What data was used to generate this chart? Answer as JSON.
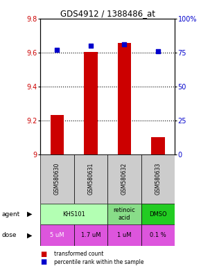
{
  "title": "GDS4912 / 1388486_at",
  "samples": [
    "GSM580630",
    "GSM580631",
    "GSM580632",
    "GSM580633"
  ],
  "transformed_counts": [
    9.23,
    9.605,
    9.655,
    9.1
  ],
  "percentile_ranks": [
    77,
    80,
    81,
    76
  ],
  "ylim_left": [
    9.0,
    9.8
  ],
  "ylim_right": [
    0,
    100
  ],
  "yticks_left": [
    9.0,
    9.2,
    9.4,
    9.6,
    9.8
  ],
  "yticks_right": [
    0,
    25,
    50,
    75,
    100
  ],
  "bar_color": "#cc0000",
  "dot_color": "#0000cc",
  "bar_width": 0.4,
  "dose_labels": [
    "5 uM",
    "1.7 uM",
    "1 uM",
    "0.1 %"
  ],
  "dose_color": "#dd55dd",
  "sample_bg_color": "#cccccc",
  "agent_light_green": "#b3ffb3",
  "agent_mid_green": "#88dd88",
  "agent_dark_green": "#22cc22",
  "legend_red_label": "transformed count",
  "legend_blue_label": "percentile rank within the sample"
}
